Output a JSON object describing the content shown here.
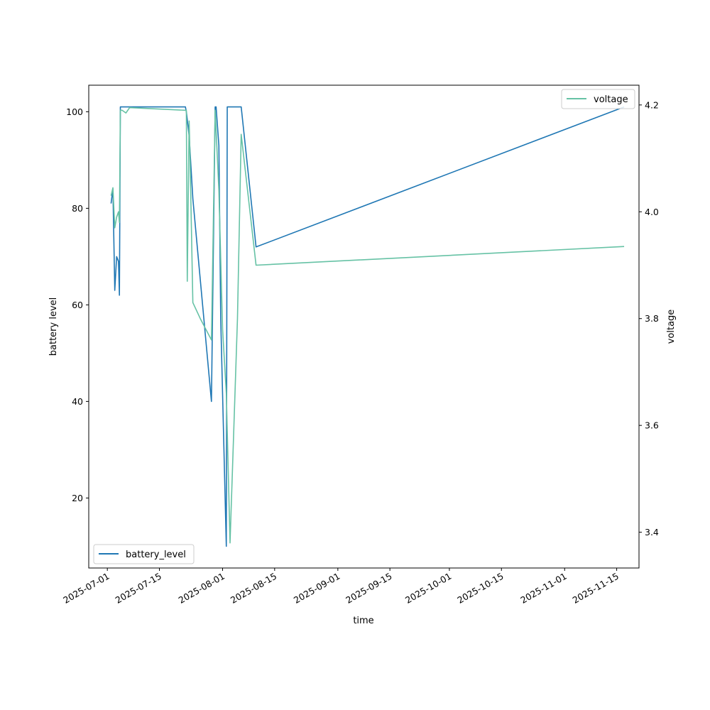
{
  "chart_data": {
    "type": "line",
    "title": "",
    "xlabel": "time",
    "ylabel_left": "battery level",
    "ylabel_right": "voltage",
    "x_ticks": [
      "2025-07-01",
      "2025-07-15",
      "2025-08-01",
      "2025-08-15",
      "2025-09-01",
      "2025-09-15",
      "2025-10-01",
      "2025-10-15",
      "2025-11-01",
      "2025-11-15"
    ],
    "xlim": [
      "2025-06-26",
      "2025-11-21"
    ],
    "y_left_ticks": [
      20,
      40,
      60,
      80,
      100
    ],
    "y_left_lim": [
      5.5,
      105.5
    ],
    "y_right_ticks": [
      "3.4",
      "3.6",
      "3.8",
      "4.0",
      "4.2"
    ],
    "y_right_lim": [
      3.333,
      4.237
    ],
    "series": [
      {
        "name": "battery_level",
        "axis": "left",
        "color": "#1f77b4",
        "x": [
          "2025-07-02",
          "2025-07-02 12:00",
          "2025-07-03",
          "2025-07-03 12:00",
          "2025-07-04",
          "2025-07-04 06:00",
          "2025-07-04 12:00",
          "2025-07-05",
          "2025-07-22",
          "2025-07-22 06:00",
          "2025-07-23",
          "2025-07-24",
          "2025-07-29",
          "2025-07-30",
          "2025-07-30 06:00",
          "2025-07-31",
          "2025-07-31 12:00",
          "2025-08-02",
          "2025-08-02 06:00",
          "2025-08-06",
          "2025-08-10",
          "2025-11-17"
        ],
        "values": [
          81,
          84,
          63,
          70,
          69,
          62,
          101,
          101,
          101,
          100,
          95,
          82,
          40,
          101,
          101,
          93,
          57,
          10,
          101,
          101,
          72,
          101
        ]
      },
      {
        "name": "voltage",
        "axis": "right",
        "color": "#66c2a5",
        "x": [
          "2025-07-02",
          "2025-07-02 12:00",
          "2025-07-03",
          "2025-07-03 12:00",
          "2025-07-04",
          "2025-07-04 06:00",
          "2025-07-04 12:00",
          "2025-07-05",
          "2025-07-06",
          "2025-07-07",
          "2025-07-22",
          "2025-07-22 06:00",
          "2025-07-22 12:00",
          "2025-07-23",
          "2025-07-23 06:00",
          "2025-07-24",
          "2025-07-26",
          "2025-07-29",
          "2025-07-30",
          "2025-07-31",
          "2025-08-01",
          "2025-08-02",
          "2025-08-03",
          "2025-08-05",
          "2025-08-06",
          "2025-08-10",
          "2025-11-17"
        ],
        "values": [
          4.03,
          4.045,
          3.97,
          3.99,
          4.0,
          3.98,
          4.19,
          4.19,
          4.185,
          4.195,
          4.19,
          4.19,
          3.87,
          4.17,
          4.1,
          3.83,
          3.8,
          3.76,
          4.19,
          4.04,
          3.78,
          3.66,
          3.38,
          3.8,
          4.145,
          3.9,
          3.935
        ]
      }
    ],
    "legends": [
      {
        "label": "battery_level",
        "placement": "lower-left"
      },
      {
        "label": "voltage",
        "placement": "upper-right"
      }
    ],
    "grid": false
  }
}
